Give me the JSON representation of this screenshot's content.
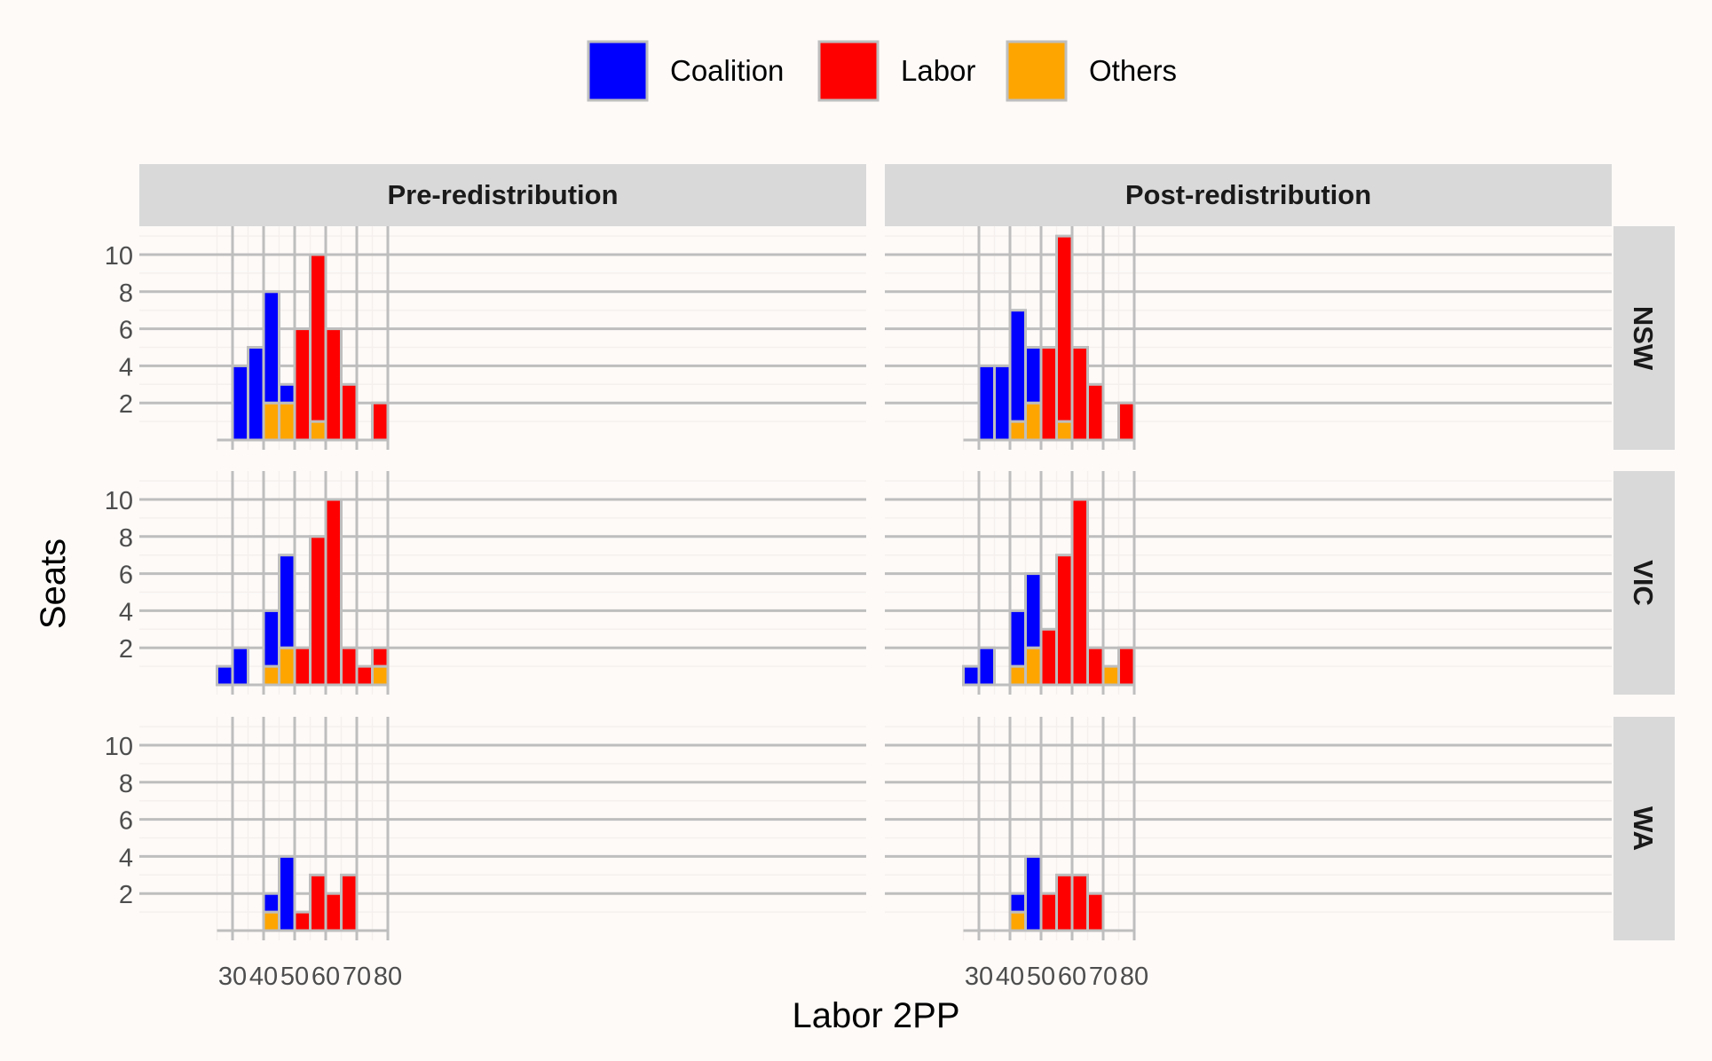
{
  "chart_data": {
    "type": "bar",
    "stacked": true,
    "facets": {
      "columns": [
        "Pre-redistribution",
        "Post-redistribution"
      ],
      "rows": [
        "NSW",
        "VIC",
        "WA"
      ]
    },
    "xlabel": "Labor 2PP",
    "ylabel": "Seats",
    "x_ticks": [
      30,
      40,
      50,
      60,
      70,
      80
    ],
    "y_ticks": [
      2,
      4,
      6,
      8,
      10
    ],
    "xlim": [
      25,
      80
    ],
    "ylim": [
      0,
      11
    ],
    "bin_width": 5,
    "bin_starts": [
      25,
      30,
      35,
      40,
      45,
      50,
      55,
      60,
      65,
      70,
      75
    ],
    "grid": true,
    "legend": {
      "position": "top",
      "entries": [
        {
          "name": "Coalition",
          "color": "#0000ff"
        },
        {
          "name": "Labor",
          "color": "#ff0000"
        },
        {
          "name": "Others",
          "color": "#ffa500"
        }
      ]
    },
    "panels": [
      {
        "column": "Pre-redistribution",
        "row": "NSW",
        "Others": [
          0,
          0,
          0,
          2,
          2,
          0,
          1,
          0,
          0,
          0,
          0
        ],
        "Coalition": [
          0,
          4,
          5,
          6,
          1,
          0,
          0,
          0,
          0,
          0,
          0
        ],
        "Labor": [
          0,
          0,
          0,
          0,
          0,
          6,
          9,
          6,
          3,
          0,
          2
        ]
      },
      {
        "column": "Post-redistribution",
        "row": "NSW",
        "Others": [
          0,
          0,
          0,
          1,
          2,
          0,
          1,
          0,
          0,
          0,
          0
        ],
        "Coalition": [
          0,
          4,
          4,
          6,
          3,
          0,
          0,
          0,
          0,
          0,
          0
        ],
        "Labor": [
          0,
          0,
          0,
          0,
          0,
          5,
          10,
          5,
          3,
          0,
          2
        ]
      },
      {
        "column": "Pre-redistribution",
        "row": "VIC",
        "Others": [
          0,
          0,
          0,
          1,
          2,
          0,
          0,
          0,
          0,
          0,
          1
        ],
        "Coalition": [
          1,
          2,
          0,
          3,
          5,
          0,
          0,
          0,
          0,
          0,
          0
        ],
        "Labor": [
          0,
          0,
          0,
          0,
          0,
          2,
          8,
          10,
          2,
          1,
          1
        ]
      },
      {
        "column": "Post-redistribution",
        "row": "VIC",
        "Others": [
          0,
          0,
          0,
          1,
          2,
          0,
          0,
          0,
          0,
          1,
          0
        ],
        "Coalition": [
          1,
          2,
          0,
          3,
          4,
          0,
          0,
          0,
          0,
          0,
          0
        ],
        "Labor": [
          0,
          0,
          0,
          0,
          0,
          3,
          7,
          10,
          2,
          0,
          2
        ]
      },
      {
        "column": "Pre-redistribution",
        "row": "WA",
        "Others": [
          0,
          0,
          0,
          1,
          0,
          0,
          0,
          0,
          0,
          0,
          0
        ],
        "Coalition": [
          0,
          0,
          0,
          1,
          4,
          0,
          0,
          0,
          0,
          0,
          0
        ],
        "Labor": [
          0,
          0,
          0,
          0,
          0,
          1,
          3,
          2,
          3,
          0,
          0
        ]
      },
      {
        "column": "Post-redistribution",
        "row": "WA",
        "Others": [
          0,
          0,
          0,
          1,
          0,
          0,
          0,
          0,
          0,
          0,
          0
        ],
        "Coalition": [
          0,
          0,
          0,
          1,
          4,
          0,
          0,
          0,
          0,
          0,
          0
        ],
        "Labor": [
          0,
          0,
          0,
          0,
          0,
          2,
          3,
          3,
          2,
          0,
          0
        ]
      }
    ]
  }
}
